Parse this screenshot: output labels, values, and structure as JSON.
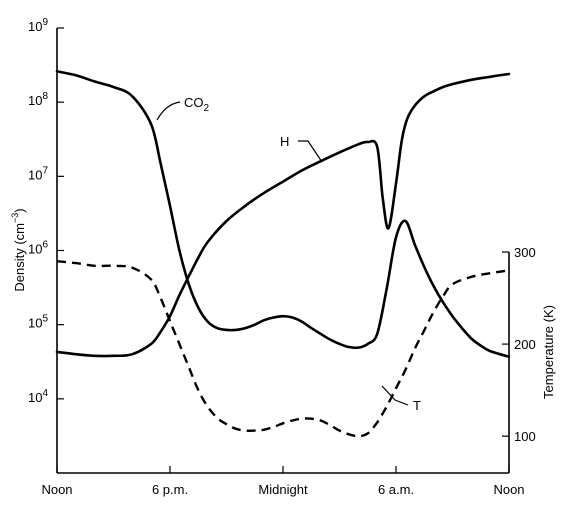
{
  "chart_data": {
    "type": "line",
    "left_axis": {
      "label_text": "Density (cm",
      "label_sup": "−3",
      "label_close": ")",
      "scale": "log",
      "range": [
        1000,
        1000000000
      ],
      "ticks": [
        {
          "value": 10000,
          "base": "10",
          "exp": "4"
        },
        {
          "value": 100000,
          "base": "10",
          "exp": "5"
        },
        {
          "value": 1000000,
          "base": "10",
          "exp": "6"
        },
        {
          "value": 10000000,
          "base": "10",
          "exp": "7"
        },
        {
          "value": 100000000,
          "base": "10",
          "exp": "8"
        },
        {
          "value": 1000000000,
          "base": "10",
          "exp": "9"
        }
      ]
    },
    "right_axis": {
      "label": "Temperature (K)",
      "range": [
        60,
        300
      ],
      "ticks": [
        {
          "value": 100,
          "label": "100"
        },
        {
          "value": 200,
          "label": "200"
        },
        {
          "value": 300,
          "label": "300"
        }
      ]
    },
    "x_axis": {
      "range": [
        0,
        24
      ],
      "ticks": [
        {
          "value": 0,
          "label": "Noon"
        },
        {
          "value": 6,
          "label": "6 p.m."
        },
        {
          "value": 12,
          "label": "Midnight"
        },
        {
          "value": 18,
          "label": "6 a.m."
        },
        {
          "value": 24,
          "label": "Noon"
        }
      ]
    },
    "grid": false,
    "series": [
      {
        "name": "CO",
        "name_sub": "2",
        "axis": "left",
        "style": "solid",
        "x": [
          0,
          1,
          2,
          3,
          4,
          5,
          5.5,
          6,
          6.5,
          7,
          7.5,
          8,
          8.5,
          9,
          9.5,
          10,
          10.5,
          11,
          11.5,
          12,
          12.5,
          13,
          13.5,
          14,
          14.5,
          15,
          15.5,
          16,
          16.5,
          17,
          17.5,
          18,
          18.5,
          19,
          19.5,
          20,
          20.5,
          21,
          21.5,
          22,
          22.5,
          23,
          24
        ],
        "y": [
          260000000,
          230000000,
          190000000,
          160000000,
          120000000,
          50000000,
          15000000,
          4000000,
          1000000,
          350000,
          170000,
          110000,
          90000,
          85000,
          85000,
          90000,
          100000,
          115000,
          125000,
          130000,
          125000,
          110000,
          90000,
          75000,
          63000,
          55000,
          50000,
          49000,
          55000,
          75000,
          300000,
          1500000,
          2500000,
          1200000,
          600000,
          330000,
          200000,
          130000,
          90000,
          65000,
          52000,
          44000,
          37000
        ]
      },
      {
        "name": "H",
        "axis": "left",
        "style": "solid",
        "x": [
          0,
          1,
          2,
          3,
          4,
          5,
          5.5,
          6,
          6.5,
          7,
          7.5,
          8,
          9,
          10,
          11,
          12,
          13,
          14,
          15,
          16,
          16.5,
          17,
          17.3,
          17.6,
          18,
          18.3,
          18.6,
          19,
          19.5,
          20,
          20.5,
          21,
          22,
          23,
          24
        ],
        "y": [
          43000,
          40000,
          38000,
          38000,
          40000,
          55000,
          80000,
          130000,
          250000,
          450000,
          800000,
          1300000,
          2500000,
          4000000,
          6000000,
          8500000,
          12000000,
          16000000,
          21000000,
          27000000,
          29000000,
          25000000,
          5000000,
          2000000,
          8000000,
          30000000,
          60000000,
          90000000,
          120000000,
          140000000,
          160000000,
          175000000,
          200000000,
          220000000,
          240000000
        ]
      },
      {
        "name": "T",
        "axis": "right",
        "style": "dashed",
        "x": [
          0,
          1,
          2,
          3,
          4,
          5,
          5.5,
          6,
          6.5,
          7,
          7.5,
          8,
          8.5,
          9,
          9.5,
          10,
          10.5,
          11,
          11.5,
          12,
          12.5,
          13,
          13.5,
          14,
          14.5,
          15,
          15.5,
          16,
          16.5,
          17,
          17.5,
          18,
          18.5,
          19,
          19.5,
          20,
          20.5,
          21,
          22,
          23,
          24
        ],
        "y": [
          290,
          288,
          285,
          285,
          283,
          270,
          250,
          225,
          200,
          175,
          150,
          132,
          120,
          113,
          108,
          106,
          106,
          107,
          110,
          114,
          117,
          119,
          119,
          117,
          112,
          106,
          102,
          100,
          103,
          115,
          132,
          152,
          172,
          195,
          215,
          235,
          252,
          265,
          273,
          277,
          280
        ]
      }
    ]
  }
}
